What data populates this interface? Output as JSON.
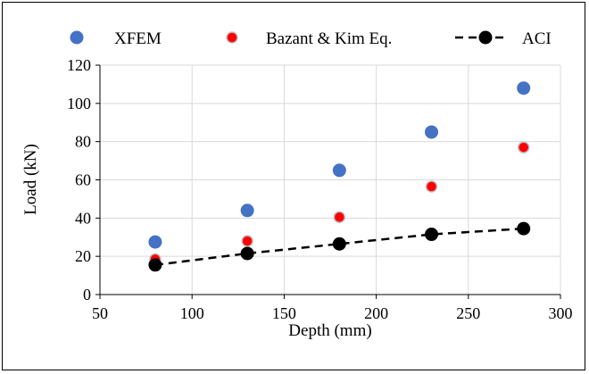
{
  "chart_data": {
    "type": "scatter",
    "title": "",
    "xlabel": "Depth (mm)",
    "ylabel": "Load (kN)",
    "xlim": [
      50,
      300
    ],
    "ylim": [
      0,
      120
    ],
    "xticks": [
      50,
      100,
      150,
      200,
      250,
      300
    ],
    "yticks": [
      0,
      20,
      40,
      60,
      80,
      100,
      120
    ],
    "grid": true,
    "legend_position": "top",
    "series": [
      {
        "name": "XFEM",
        "style": "markers",
        "color": "#4472C4",
        "x": [
          80,
          130,
          180,
          230,
          280
        ],
        "y": [
          27.5,
          44,
          65,
          85,
          108
        ]
      },
      {
        "name": "Bazant & Kim Eq.",
        "style": "markers",
        "color": "#FF0000",
        "x": [
          80,
          130,
          180,
          230,
          280
        ],
        "y": [
          18.5,
          28,
          40.5,
          56.5,
          77
        ]
      },
      {
        "name": "ACI",
        "style": "dashed-line-markers",
        "color": "#000000",
        "x": [
          80,
          130,
          180,
          230,
          280
        ],
        "y": [
          15.5,
          21.5,
          26.5,
          31.5,
          34.5
        ]
      }
    ]
  }
}
